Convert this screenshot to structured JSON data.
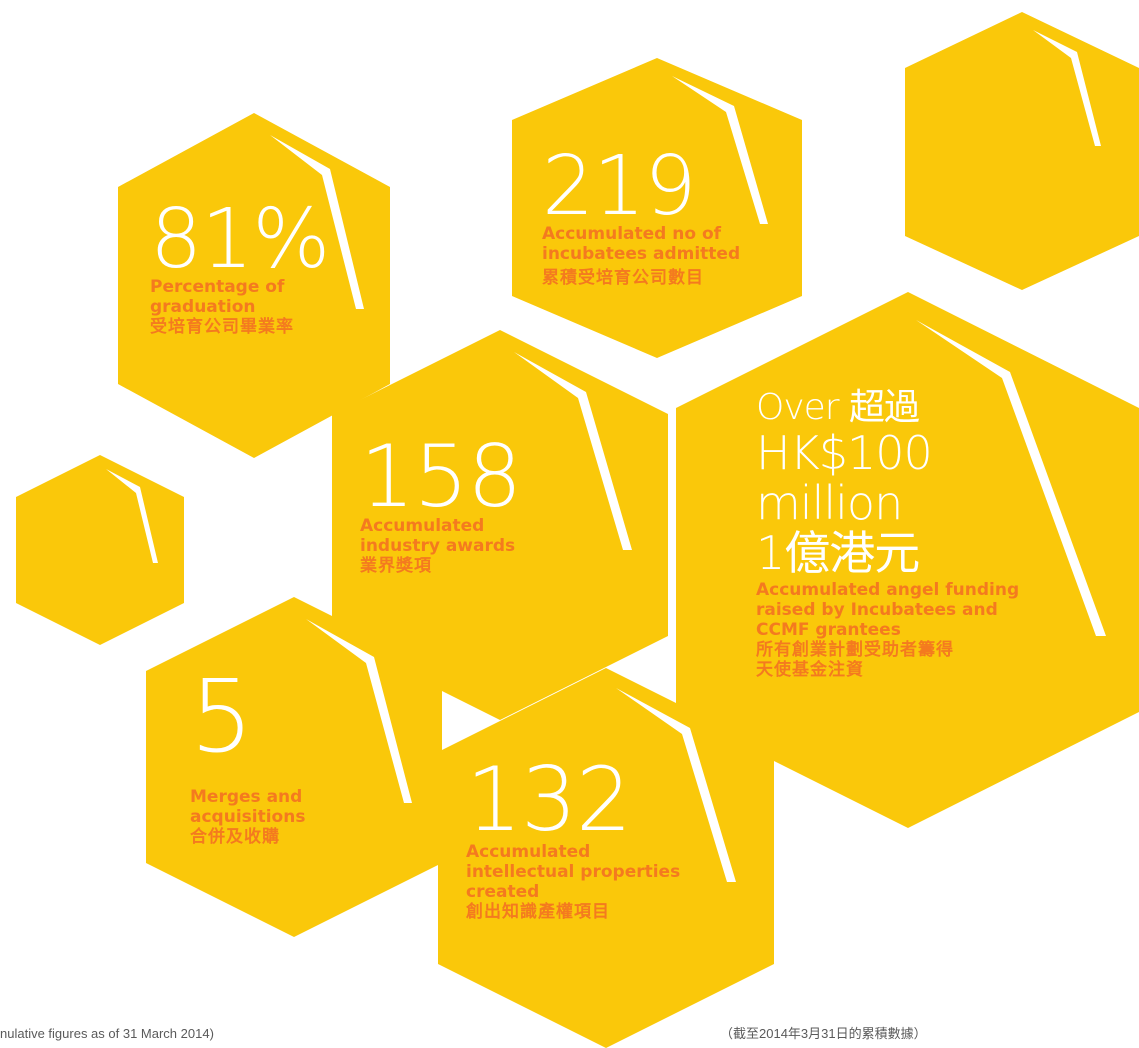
{
  "colors": {
    "hex_fill": "#FAC80A",
    "accent_stroke": "#FFFFFF",
    "label_text": "#F47A1F",
    "number_text": "#FFFFFF",
    "footnote_text": "#5A5A5A"
  },
  "stats": {
    "graduation": {
      "value": "81%",
      "label_en_1": "Percentage of",
      "label_en_2": "graduation",
      "label_zh": "受培育公司畢業率"
    },
    "incubatees": {
      "value": "219",
      "label_en_1": "Accumulated no of",
      "label_en_2": "incubatees admitted",
      "label_zh": "累積受培育公司數目"
    },
    "awards": {
      "value": "158",
      "label_en_1": "Accumulated",
      "label_en_2": "industry awards",
      "label_zh": "業界獎項"
    },
    "funding": {
      "value_line1": "Over 超過",
      "value_line2": "HK$100",
      "value_line3": "million",
      "value_line4": "1億港元",
      "label_en_1": "Accumulated angel funding",
      "label_en_2": "raised by Incubatees and",
      "label_en_3": "CCMF grantees",
      "label_zh_1": "所有創業計劃受助者籌得",
      "label_zh_2": "天使基金注資"
    },
    "mergers": {
      "value": "5",
      "label_en_1": "Merges and",
      "label_en_2": "acquisitions",
      "label_zh": "合併及收購"
    },
    "ip": {
      "value": "132",
      "label_en_1": "Accumulated",
      "label_en_2": "intellectual properties",
      "label_en_3": "created",
      "label_zh": "創出知識產權項目"
    }
  },
  "footnotes": {
    "en": "nulative figures as of 31 March 2014)",
    "zh": "（截至2014年3月31日的累積數據）"
  }
}
